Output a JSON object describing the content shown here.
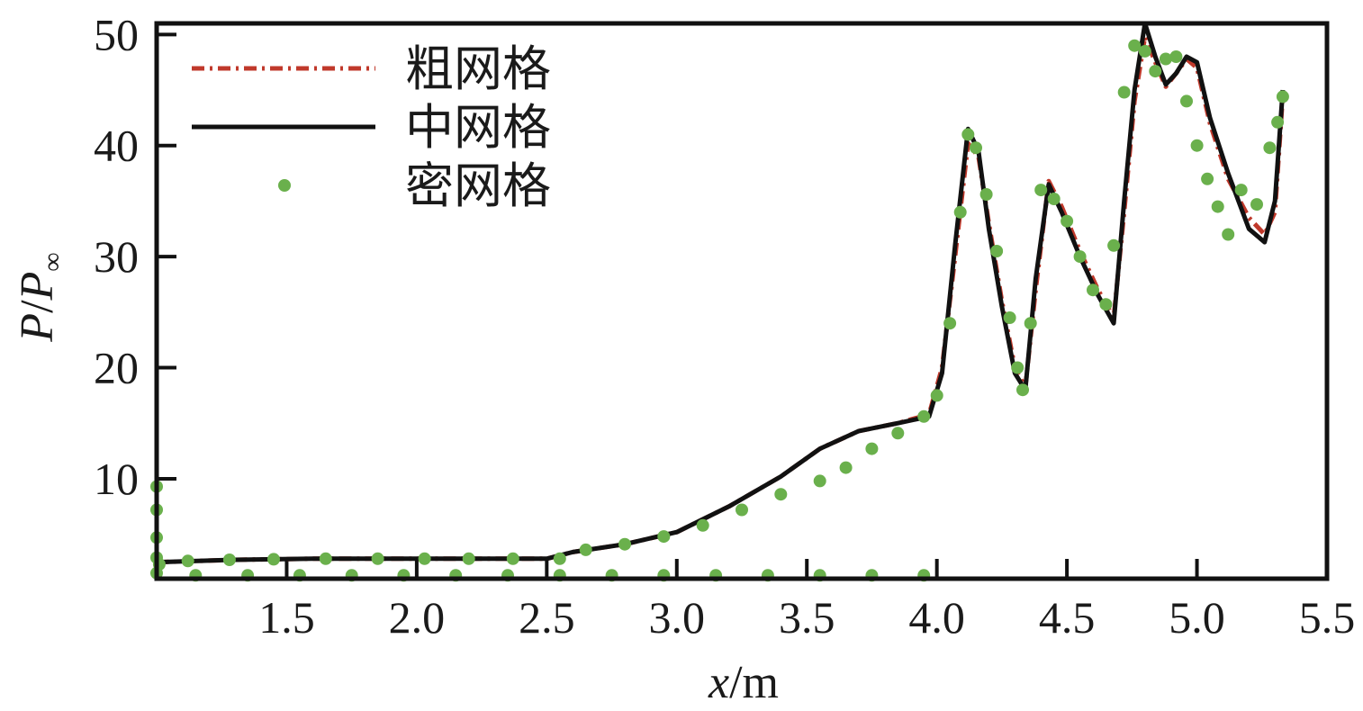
{
  "chart_data": {
    "type": "line",
    "xlabel": {
      "var": "x",
      "unit": "/m"
    },
    "ylabel": {
      "var": "P",
      "sep": "/",
      "var2": "P",
      "sub": "∞"
    },
    "xlim": [
      1.0,
      5.5
    ],
    "ylim": [
      1.0,
      51.0
    ],
    "xticks": [
      1.5,
      2.0,
      2.5,
      3.0,
      3.5,
      4.0,
      4.5,
      5.0,
      5.5
    ],
    "xtick_labels": [
      "1.5",
      "2.0",
      "2.5",
      "3.0",
      "3.5",
      "4.0",
      "4.5",
      "5.0",
      "5.5"
    ],
    "yticks": [
      10,
      20,
      30,
      40,
      50
    ],
    "ytick_labels": [
      "10",
      "20",
      "30",
      "40",
      "50"
    ],
    "legend_position": "top-left",
    "colors": {
      "coarse": "#c0392b",
      "medium": "#111111",
      "fine": "#6ab04c"
    },
    "series": [
      {
        "name": "粗网格",
        "style": "dash-dot",
        "x": [
          1.0,
          1.02,
          1.3,
          1.6,
          2.0,
          2.3,
          2.5,
          2.6,
          2.8,
          3.0,
          3.2,
          3.4,
          3.55,
          3.7,
          3.85,
          3.97,
          4.02,
          4.07,
          4.12,
          4.16,
          4.2,
          4.25,
          4.3,
          4.34,
          4.38,
          4.43,
          4.48,
          4.55,
          4.62,
          4.68,
          4.72,
          4.76,
          4.8,
          4.84,
          4.88,
          4.92,
          4.96,
          5.0,
          5.05,
          5.12,
          5.2,
          5.26,
          5.3,
          5.33
        ],
        "y": [
          2.3,
          2.5,
          2.7,
          2.8,
          2.8,
          2.8,
          2.8,
          3.4,
          4.1,
          5.2,
          7.5,
          10.2,
          12.7,
          14.3,
          15.0,
          15.8,
          20.0,
          30.0,
          40.2,
          39.0,
          33.0,
          26.0,
          20.0,
          18.2,
          27.0,
          36.8,
          34.5,
          30.5,
          27.0,
          24.5,
          34.0,
          44.0,
          49.8,
          47.5,
          45.3,
          46.5,
          47.8,
          47.0,
          42.0,
          37.0,
          33.5,
          32.0,
          34.0,
          44.5
        ]
      },
      {
        "name": "中网格",
        "style": "solid",
        "x": [
          1.0,
          1.02,
          1.3,
          1.6,
          2.0,
          2.3,
          2.5,
          2.6,
          2.8,
          3.0,
          3.2,
          3.4,
          3.55,
          3.7,
          3.85,
          3.97,
          4.02,
          4.07,
          4.12,
          4.16,
          4.2,
          4.25,
          4.3,
          4.34,
          4.38,
          4.43,
          4.48,
          4.55,
          4.62,
          4.68,
          4.72,
          4.76,
          4.8,
          4.84,
          4.88,
          4.92,
          4.96,
          5.0,
          5.05,
          5.12,
          5.2,
          5.26,
          5.3,
          5.33
        ],
        "y": [
          2.3,
          2.5,
          2.7,
          2.8,
          2.8,
          2.8,
          2.8,
          3.4,
          4.1,
          5.2,
          7.5,
          10.2,
          12.7,
          14.3,
          15.0,
          15.6,
          19.5,
          31.0,
          41.5,
          39.5,
          32.5,
          25.5,
          19.5,
          18.0,
          28.0,
          36.5,
          34.0,
          30.0,
          26.5,
          24.0,
          35.0,
          45.0,
          51.0,
          48.0,
          45.5,
          46.5,
          48.0,
          47.5,
          42.5,
          37.5,
          32.5,
          31.3,
          35.0,
          45.0
        ]
      },
      {
        "name": "密网格",
        "style": "dots",
        "x": [
          1.0,
          1.0,
          1.0,
          1.0,
          1.0,
          1.01,
          1.12,
          1.28,
          1.45,
          1.65,
          1.85,
          2.03,
          2.2,
          2.37,
          2.55,
          2.65,
          2.8,
          2.95,
          3.1,
          3.25,
          3.4,
          3.55,
          3.65,
          3.75,
          3.85,
          3.95,
          4.0,
          4.05,
          4.09,
          4.12,
          4.15,
          4.19,
          4.23,
          4.28,
          4.31,
          4.33,
          4.36,
          4.4,
          4.45,
          4.5,
          4.55,
          4.6,
          4.65,
          4.68,
          4.72,
          4.76,
          4.8,
          4.84,
          4.88,
          4.92,
          4.96,
          5.0,
          5.04,
          5.08,
          5.12,
          5.17,
          5.23,
          5.28,
          5.31,
          5.33,
          1.15,
          1.35,
          1.55,
          1.75,
          1.95,
          2.15,
          2.35,
          2.55,
          2.75,
          2.95,
          3.15,
          3.35,
          3.55,
          3.75,
          3.95
        ],
        "y": [
          9.3,
          7.2,
          4.7,
          2.9,
          1.5,
          2.3,
          2.6,
          2.7,
          2.75,
          2.8,
          2.8,
          2.8,
          2.8,
          2.8,
          2.8,
          3.6,
          4.1,
          4.8,
          5.8,
          7.2,
          8.6,
          9.8,
          11.0,
          12.7,
          14.1,
          15.6,
          17.5,
          24.0,
          34.0,
          41.0,
          39.8,
          35.6,
          30.5,
          24.5,
          20.0,
          18.0,
          24.0,
          36.0,
          35.2,
          33.2,
          30.0,
          27.0,
          25.7,
          31.0,
          44.8,
          49.0,
          48.5,
          46.7,
          47.8,
          48.0,
          44.0,
          40.0,
          37.0,
          34.5,
          32.0,
          36.0,
          34.7,
          39.8,
          42.1,
          44.4,
          1.3,
          1.3,
          1.3,
          1.3,
          1.3,
          1.3,
          1.3,
          1.3,
          1.3,
          1.3,
          1.3,
          1.3,
          1.3,
          1.3,
          1.3
        ]
      }
    ]
  }
}
